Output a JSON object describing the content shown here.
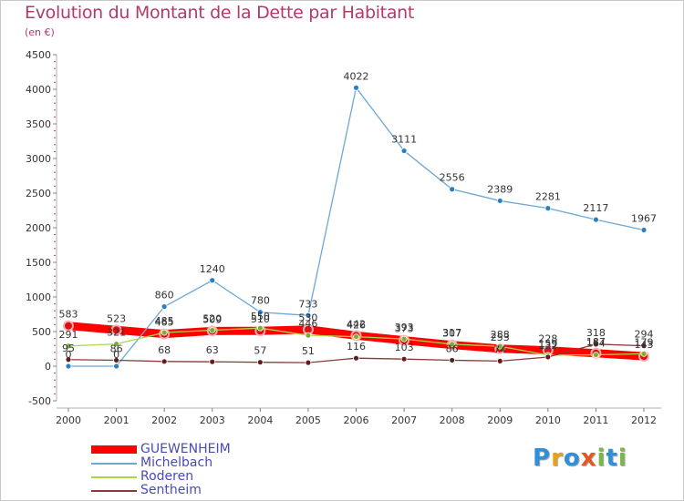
{
  "title": "Evolution du Montant de la Dette par Habitant",
  "subtitle": "(en €)",
  "logo": {
    "text": "Proxiti",
    "letters": [
      {
        "ch": "P",
        "color": "#2f8fd8"
      },
      {
        "ch": "r",
        "color": "#e8a21a"
      },
      {
        "ch": "o",
        "color": "#2f8fd8"
      },
      {
        "ch": "x",
        "color": "#e35a20"
      },
      {
        "ch": "i",
        "color": "#7ab648"
      },
      {
        "ch": "t",
        "color": "#2f8fd8"
      },
      {
        "ch": "i",
        "color": "#7ab648"
      }
    ]
  },
  "chart_data": {
    "type": "line",
    "title": "Evolution du Montant de la Dette par Habitant",
    "subtitle": "(en €)",
    "x": [
      "2000",
      "2001",
      "2002",
      "2003",
      "2004",
      "2005",
      "2006",
      "2007",
      "2008",
      "2009",
      "2010",
      "2011",
      "2012"
    ],
    "ylim": [
      -500,
      4500
    ],
    "yticks": [
      -500,
      0,
      500,
      1000,
      1500,
      2000,
      2500,
      3000,
      3500,
      4000,
      4500
    ],
    "grid": false,
    "legend_position": "bottom-left",
    "series": [
      {
        "name": "GUEWENHEIM",
        "color": "#ff0000",
        "marker_color": "#e01010",
        "thick": true,
        "values": [
          583,
          523,
          465,
          509,
          510,
          530,
          442,
          373,
          307,
          253,
          228,
          187,
          143
        ],
        "labels": [
          "583",
          "523",
          "465",
          "509",
          "510",
          "530",
          "442",
          "373",
          "307",
          "253",
          "228",
          "187",
          "143"
        ]
      },
      {
        "name": "Michelbach",
        "color": "#6aa8d8",
        "marker_color": "#2a7fc4",
        "thick": false,
        "values": [
          0,
          0,
          860,
          1240,
          780,
          733,
          4022,
          3111,
          2556,
          2389,
          2281,
          2117,
          1967
        ],
        "labels": [
          "0",
          "0",
          "860",
          "1240",
          "780",
          "733",
          "4022",
          "3111",
          "2556",
          "2389",
          "2281",
          "2117",
          "1967"
        ]
      },
      {
        "name": "Roderen",
        "color": "#a8d84a",
        "marker_color": "#7ab030",
        "thick": false,
        "values": [
          291,
          321,
          485,
          520,
          550,
          446,
          426,
          393,
          317,
          288,
          159,
          164,
          179
        ],
        "labels": [
          "291",
          "321",
          "485",
          "520",
          "550",
          "446",
          "426",
          "393",
          "317",
          "288",
          "159",
          "164",
          "179"
        ]
      },
      {
        "name": "Sentheim",
        "color": "#8a3a3a",
        "marker_color": "#6a1a1a",
        "thick": false,
        "values": [
          95,
          86,
          68,
          63,
          57,
          51,
          116,
          103,
          86,
          74,
          132,
          318,
          294
        ],
        "labels": [
          "95",
          "86",
          "68",
          "63",
          "57",
          "51",
          "116",
          "103",
          "86",
          "74",
          "132",
          "318",
          "294"
        ]
      }
    ]
  }
}
